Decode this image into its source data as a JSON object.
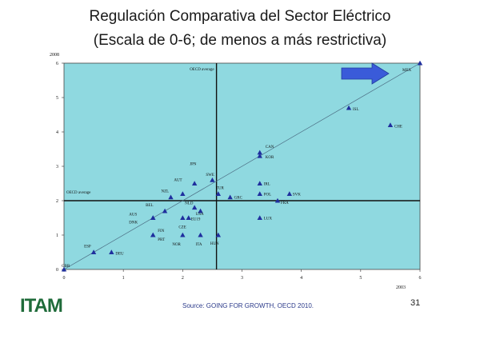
{
  "slide": {
    "title_line1": "Regulación Comparativa del Sector Eléctrico",
    "title_line2": "(Escala de 0-6; de menos a más restrictiva)",
    "logo_text": "ITAM",
    "source": "Source: GOING FOR GROWTH, OECD 2010.",
    "page_number": "31"
  },
  "colors": {
    "plot_bg": "#8fd9e0",
    "marker": "#1f2f9e",
    "arrow": "#3a5bd9",
    "logo": "#1f6b3a"
  },
  "chart_data": {
    "type": "scatter",
    "xlabel": "2003",
    "ylabel": "2008",
    "xlim": [
      0,
      6
    ],
    "ylim": [
      0,
      6
    ],
    "xticks": [
      0,
      1,
      2,
      3,
      4,
      5,
      6
    ],
    "yticks": [
      0,
      1,
      2,
      3,
      4,
      5,
      6
    ],
    "grid": false,
    "reference_lines": [
      {
        "axis": "x",
        "value": 2.57,
        "label": "OECD average"
      },
      {
        "axis": "y",
        "value": 2.0,
        "label": "OECD average"
      }
    ],
    "trend_line": {
      "from": [
        0,
        0
      ],
      "to": [
        6,
        6
      ]
    },
    "annotation": "arrow pointing to MEX",
    "points": [
      {
        "label": "GBR",
        "x": 0.0,
        "y": 0.0
      },
      {
        "label": "ESP",
        "x": 0.5,
        "y": 0.5
      },
      {
        "label": "DEU",
        "x": 0.8,
        "y": 0.5
      },
      {
        "label": "AUS",
        "x": 1.5,
        "y": 1.5
      },
      {
        "label": "DNK",
        "x": 1.5,
        "y": 1.5
      },
      {
        "label": "BEL",
        "x": 1.7,
        "y": 1.7
      },
      {
        "label": "FIN",
        "x": 1.5,
        "y": 1.0
      },
      {
        "label": "PRT",
        "x": 1.5,
        "y": 1.0
      },
      {
        "label": "NZL",
        "x": 1.8,
        "y": 2.1
      },
      {
        "label": "AUT",
        "x": 2.0,
        "y": 2.2
      },
      {
        "label": "JPN",
        "x": 2.2,
        "y": 2.5
      },
      {
        "label": "SWE",
        "x": 2.5,
        "y": 2.6
      },
      {
        "label": "TUR",
        "x": 2.6,
        "y": 2.2
      },
      {
        "label": "NLD",
        "x": 2.2,
        "y": 1.8
      },
      {
        "label": "USA",
        "x": 2.3,
        "y": 1.7
      },
      {
        "label": "CZE",
        "x": 2.0,
        "y": 1.5
      },
      {
        "label": "EU19",
        "x": 2.1,
        "y": 1.5
      },
      {
        "label": "GRC",
        "x": 2.8,
        "y": 2.1
      },
      {
        "label": "NOR",
        "x": 2.0,
        "y": 1.0
      },
      {
        "label": "ITA",
        "x": 2.3,
        "y": 1.0
      },
      {
        "label": "HUN",
        "x": 2.6,
        "y": 1.0
      },
      {
        "label": "CAN",
        "x": 3.3,
        "y": 3.4
      },
      {
        "label": "KOR",
        "x": 3.3,
        "y": 3.3
      },
      {
        "label": "IRL",
        "x": 3.3,
        "y": 2.5
      },
      {
        "label": "POL",
        "x": 3.3,
        "y": 2.2
      },
      {
        "label": "SVK",
        "x": 3.8,
        "y": 2.2
      },
      {
        "label": "FRA",
        "x": 3.6,
        "y": 2.0
      },
      {
        "label": "LUX",
        "x": 3.3,
        "y": 1.5
      },
      {
        "label": "ISL",
        "x": 4.8,
        "y": 4.7
      },
      {
        "label": "CHE",
        "x": 5.5,
        "y": 4.2
      },
      {
        "label": "MEX",
        "x": 6.0,
        "y": 6.0
      }
    ]
  }
}
